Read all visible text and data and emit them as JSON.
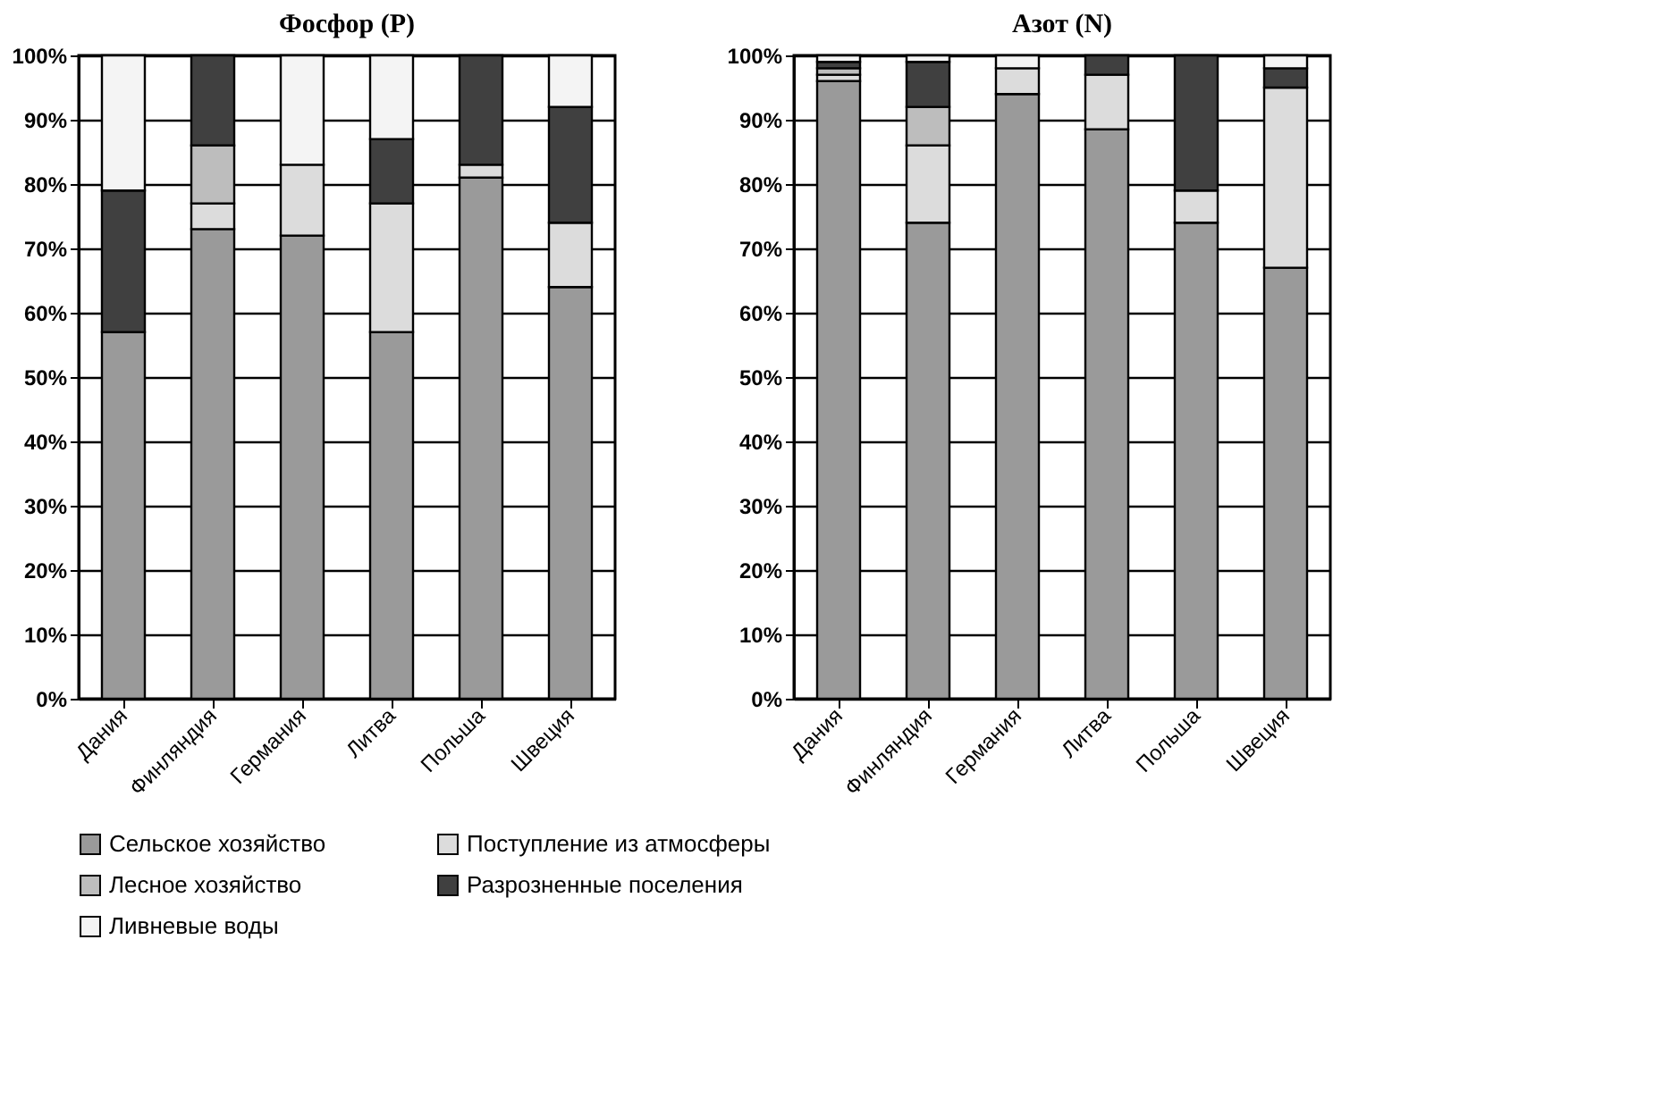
{
  "chart_data": [
    {
      "type": "bar",
      "title": "Фосфор (P)",
      "stacked": true,
      "grid": "y",
      "legend": "bottom",
      "categories": [
        "Дания",
        "Финляндия",
        "Германия",
        "Литва",
        "Польша",
        "Швеция"
      ],
      "ylim": [
        0,
        100
      ],
      "yticks": [
        {
          "value": 0,
          "label": "0%"
        },
        {
          "value": 10,
          "label": "10%"
        },
        {
          "value": 20,
          "label": "20%"
        },
        {
          "value": 30,
          "label": "30%"
        },
        {
          "value": 40,
          "label": "40%"
        },
        {
          "value": 50,
          "label": "50%"
        },
        {
          "value": 60,
          "label": "60%"
        },
        {
          "value": 70,
          "label": "70%"
        },
        {
          "value": 80,
          "label": "80%"
        },
        {
          "value": 90,
          "label": "90%"
        },
        {
          "value": 100,
          "label": "100%"
        }
      ],
      "series": [
        {
          "name": "Сельское хозяйство",
          "color": "#9a9a9a",
          "values": [
            57,
            73,
            72,
            57,
            81,
            64
          ]
        },
        {
          "name": "Поступление из атмосферы",
          "color": "#dcdcdc",
          "values": [
            null,
            4,
            11,
            20,
            2,
            10
          ]
        },
        {
          "name": "Лесное хозяйство",
          "color": "#bdbdbd",
          "values": [
            null,
            9,
            null,
            null,
            null,
            null
          ]
        },
        {
          "name": "Разрозненные поселения",
          "color": "#404040",
          "values": [
            22,
            14,
            null,
            10,
            17,
            18
          ]
        },
        {
          "name": "Ливневые воды",
          "color": "#f4f4f4",
          "values": [
            21,
            null,
            17,
            13,
            null,
            8
          ]
        }
      ]
    },
    {
      "type": "bar",
      "title": "Азот (N)",
      "stacked": true,
      "grid": "y",
      "legend": "bottom",
      "categories": [
        "Дания",
        "Финляндия",
        "Германия",
        "Литва",
        "Польша",
        "Швеция"
      ],
      "ylim": [
        0,
        100
      ],
      "yticks": [
        {
          "value": 0,
          "label": "0%"
        },
        {
          "value": 10,
          "label": "10%"
        },
        {
          "value": 20,
          "label": "20%"
        },
        {
          "value": 30,
          "label": "30%"
        },
        {
          "value": 40,
          "label": "40%"
        },
        {
          "value": 50,
          "label": "50%"
        },
        {
          "value": 60,
          "label": "60%"
        },
        {
          "value": 70,
          "label": "70%"
        },
        {
          "value": 80,
          "label": "80%"
        },
        {
          "value": 90,
          "label": "90%"
        },
        {
          "value": 100,
          "label": "100%"
        }
      ],
      "series": [
        {
          "name": "Сельское хозяйство",
          "color": "#9a9a9a",
          "values": [
            96,
            74,
            94,
            88.5,
            74,
            67
          ]
        },
        {
          "name": "Поступление из атмосферы",
          "color": "#dcdcdc",
          "values": [
            1,
            12,
            4,
            8.5,
            5,
            28
          ]
        },
        {
          "name": "Лесное хозяйство",
          "color": "#bdbdbd",
          "values": [
            1,
            6,
            null,
            null,
            null,
            null
          ]
        },
        {
          "name": "Разрозненные поселения",
          "color": "#404040",
          "values": [
            1,
            7,
            null,
            3,
            21,
            3
          ]
        },
        {
          "name": "Ливневые воды",
          "color": "#f4f4f4",
          "values": [
            1,
            1,
            2,
            null,
            null,
            2
          ]
        }
      ]
    }
  ]
}
